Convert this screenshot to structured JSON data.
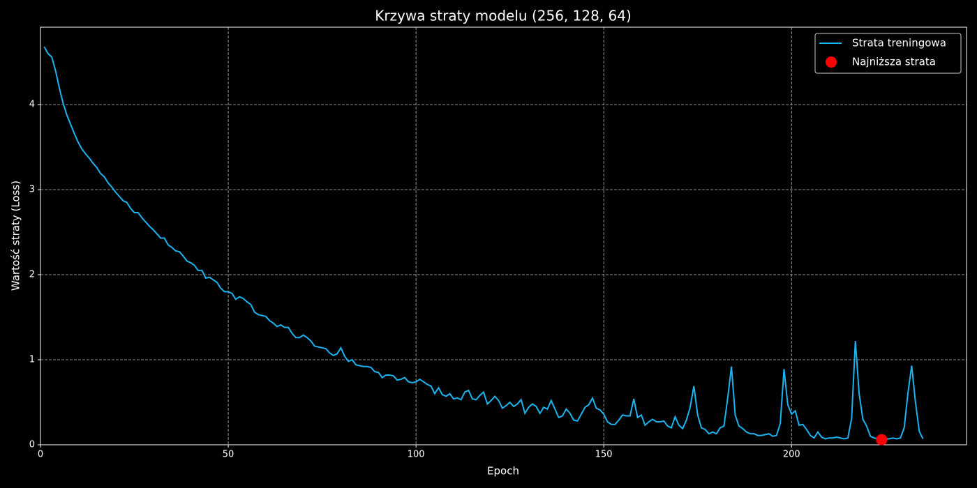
{
  "chart_data": {
    "type": "line",
    "title": "Krzywa straty modelu (256, 128, 64)",
    "x_label": "Epoch",
    "y_label": "Wartość straty (Loss)",
    "xlim": [
      0,
      246.6
    ],
    "xticks": [
      0,
      50,
      100,
      150,
      200
    ],
    "ylim": [
      0,
      4.91
    ],
    "yticks": [
      0,
      1,
      2,
      3,
      4
    ],
    "grid": true,
    "legend": "upper right",
    "series": [
      {
        "name": "Strata treningowa",
        "color": "#1ab4f0",
        "type": "line",
        "x": [
          1,
          2,
          3,
          4,
          5,
          6,
          7,
          8,
          9,
          10,
          11,
          12,
          13,
          14,
          15,
          16,
          17,
          18,
          19,
          20,
          21,
          22,
          23,
          24,
          25,
          26,
          27,
          28,
          29,
          30,
          31,
          32,
          33,
          34,
          35,
          36,
          37,
          38,
          39,
          40,
          41,
          42,
          43,
          44,
          45,
          46,
          47,
          48,
          49,
          50,
          51,
          52,
          53,
          54,
          55,
          56,
          57,
          58,
          59,
          60,
          61,
          62,
          63,
          64,
          65,
          66,
          67,
          68,
          69,
          70,
          71,
          72,
          73,
          74,
          75,
          76,
          77,
          78,
          79,
          80,
          81,
          82,
          83,
          84,
          85,
          86,
          87,
          88,
          89,
          90,
          91,
          92,
          93,
          94,
          95,
          96,
          97,
          98,
          99,
          100,
          101,
          102,
          103,
          104,
          105,
          106,
          107,
          108,
          109,
          110,
          111,
          112,
          113,
          114,
          115,
          116,
          117,
          118,
          119,
          120,
          121,
          122,
          123,
          124,
          125,
          126,
          127,
          128,
          129,
          130,
          131,
          132,
          133,
          134,
          135,
          136,
          137,
          138,
          139,
          140,
          141,
          142,
          143,
          144,
          145,
          146,
          147,
          148,
          149,
          150,
          151,
          152,
          153,
          154,
          155,
          156,
          157,
          158,
          159,
          160,
          161,
          162,
          163,
          164,
          165,
          166,
          167,
          168,
          169,
          170,
          171,
          172,
          173,
          174,
          175,
          176,
          177,
          178,
          179,
          180,
          181,
          182,
          183,
          184,
          185,
          186,
          187,
          188,
          189,
          190,
          191,
          192,
          193,
          194,
          195,
          196,
          197,
          198,
          199,
          200,
          201,
          202,
          203,
          204,
          205,
          206,
          207,
          208,
          209,
          210,
          211,
          212,
          213,
          214,
          215,
          216,
          217,
          218,
          219,
          220,
          221,
          222,
          223,
          224,
          225,
          226,
          227,
          228,
          229,
          230,
          231,
          232,
          233,
          234,
          235
        ],
        "values": [
          4.68,
          4.6,
          4.56,
          4.4,
          4.2,
          4.02,
          3.88,
          3.77,
          3.66,
          3.56,
          3.48,
          3.42,
          3.37,
          3.31,
          3.26,
          3.19,
          3.15,
          3.08,
          3.03,
          2.97,
          2.92,
          2.87,
          2.85,
          2.78,
          2.73,
          2.73,
          2.67,
          2.62,
          2.57,
          2.53,
          2.48,
          2.43,
          2.43,
          2.35,
          2.32,
          2.28,
          2.27,
          2.22,
          2.16,
          2.14,
          2.11,
          2.05,
          2.05,
          1.96,
          1.97,
          1.94,
          1.91,
          1.84,
          1.8,
          1.8,
          1.78,
          1.71,
          1.74,
          1.72,
          1.68,
          1.65,
          1.56,
          1.53,
          1.52,
          1.51,
          1.46,
          1.43,
          1.39,
          1.41,
          1.38,
          1.38,
          1.31,
          1.26,
          1.26,
          1.29,
          1.26,
          1.22,
          1.16,
          1.15,
          1.14,
          1.13,
          1.08,
          1.05,
          1.07,
          1.14,
          1.04,
          0.98,
          1.0,
          0.94,
          0.93,
          0.92,
          0.92,
          0.91,
          0.86,
          0.85,
          0.79,
          0.82,
          0.82,
          0.81,
          0.76,
          0.77,
          0.79,
          0.74,
          0.73,
          0.74,
          0.77,
          0.74,
          0.71,
          0.69,
          0.6,
          0.67,
          0.59,
          0.57,
          0.6,
          0.54,
          0.55,
          0.53,
          0.62,
          0.64,
          0.54,
          0.53,
          0.58,
          0.62,
          0.48,
          0.52,
          0.57,
          0.52,
          0.43,
          0.46,
          0.5,
          0.45,
          0.48,
          0.53,
          0.37,
          0.44,
          0.48,
          0.45,
          0.37,
          0.44,
          0.42,
          0.52,
          0.42,
          0.32,
          0.34,
          0.42,
          0.37,
          0.29,
          0.28,
          0.36,
          0.44,
          0.47,
          0.55,
          0.43,
          0.41,
          0.36,
          0.27,
          0.24,
          0.24,
          0.29,
          0.35,
          0.34,
          0.34,
          0.54,
          0.32,
          0.35,
          0.23,
          0.27,
          0.3,
          0.27,
          0.27,
          0.28,
          0.22,
          0.2,
          0.33,
          0.23,
          0.19,
          0.29,
          0.44,
          0.69,
          0.35,
          0.2,
          0.18,
          0.13,
          0.15,
          0.13,
          0.2,
          0.22,
          0.55,
          0.92,
          0.35,
          0.22,
          0.19,
          0.15,
          0.13,
          0.13,
          0.11,
          0.11,
          0.12,
          0.13,
          0.1,
          0.11,
          0.25,
          0.89,
          0.47,
          0.36,
          0.4,
          0.23,
          0.24,
          0.18,
          0.11,
          0.08,
          0.15,
          0.09,
          0.07,
          0.08,
          0.08,
          0.09,
          0.08,
          0.07,
          0.08,
          0.31,
          1.22,
          0.6,
          0.3,
          0.22,
          0.1,
          0.08,
          0.07,
          0.06,
          0.07,
          0.07,
          0.08,
          0.07,
          0.08,
          0.2,
          0.61,
          0.93,
          0.5,
          0.16,
          0.07
        ]
      },
      {
        "name": "Najniższa strata",
        "color": "#ff0000",
        "type": "scatter",
        "x": [
          224
        ],
        "values": [
          0.06
        ]
      }
    ]
  }
}
